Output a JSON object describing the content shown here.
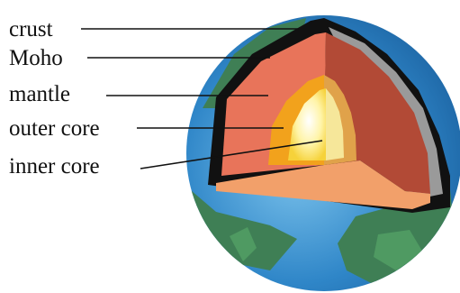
{
  "labels": {
    "crust": "crust",
    "moho": "Moho",
    "mantle": "mantle",
    "outer_core": "outer core",
    "inner_core": "inner core"
  },
  "colors": {
    "ocean": "#2f86c8",
    "land": "#3f7f55",
    "crust": "#111111",
    "moho": "#9a9a9a",
    "mantle": "#e8745a",
    "mantle_dark": "#b24a36",
    "mantle_floor": "#f2a06a",
    "outer_core": "#f2a21c",
    "inner_core": "#fff4a8"
  }
}
